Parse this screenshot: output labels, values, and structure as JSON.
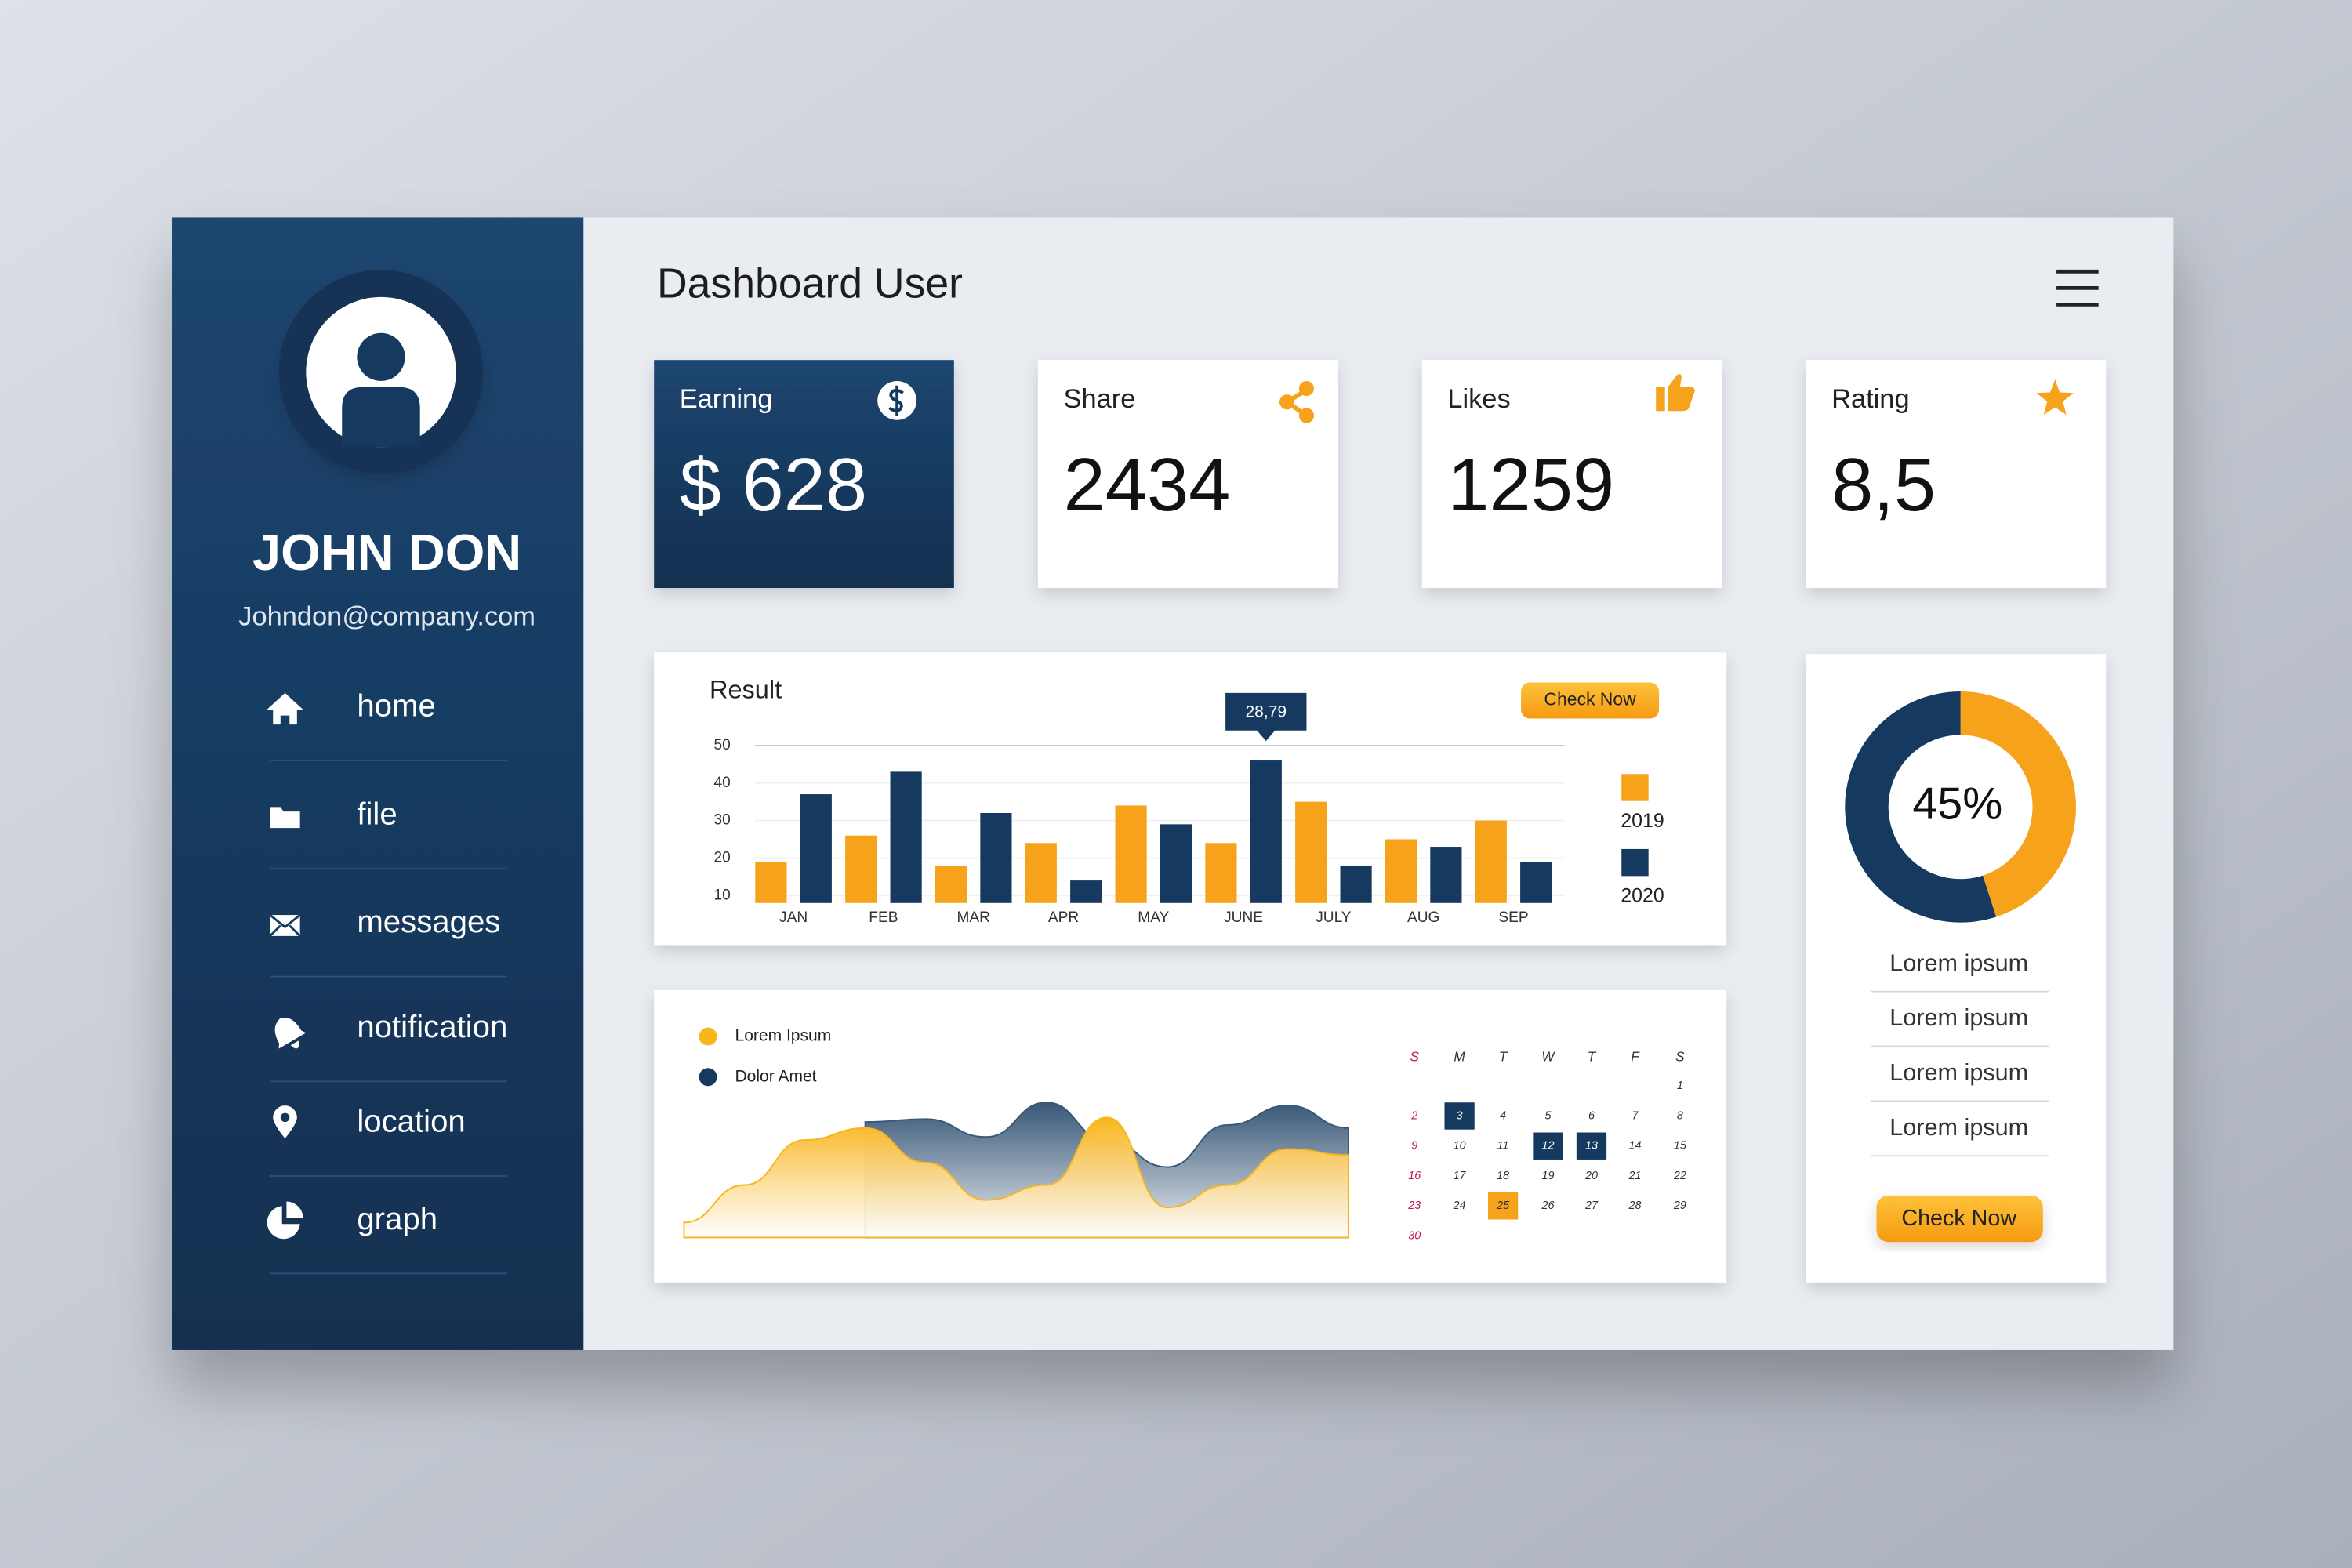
{
  "sidebar": {
    "name": "JOHN DON",
    "email": "Johndon@company.com",
    "menu": [
      "home",
      "file",
      "messages",
      "notification",
      "location",
      "graph"
    ]
  },
  "header": {
    "title": "Dashboard User"
  },
  "cards": [
    {
      "label": "Earning",
      "value": "$ 628"
    },
    {
      "label": "Share",
      "value": "2434"
    },
    {
      "label": "Likes",
      "value": "1259"
    },
    {
      "label": "Rating",
      "value": "8,5"
    }
  ],
  "chart_data": [
    {
      "type": "bar",
      "title": "Result",
      "button": "Check Now",
      "annotation": "28,79",
      "categories": [
        "JAN",
        "FEB",
        "MAR",
        "APR",
        "MAY",
        "JUNE",
        "JULY",
        "AUG",
        "SEP"
      ],
      "series": [
        {
          "name": "2019",
          "color": "#f7a21b",
          "values": [
            19,
            26,
            18,
            24,
            34,
            24,
            35,
            25,
            30
          ]
        },
        {
          "name": "2020",
          "color": "#163a5f",
          "values": [
            37,
            43,
            32,
            14,
            29,
            46,
            18,
            23,
            19
          ]
        }
      ],
      "ylim": [
        8,
        50
      ],
      "yticks": [
        10,
        20,
        30,
        40,
        50
      ],
      "grid": true
    },
    {
      "type": "pie",
      "donut": true,
      "values": [
        45,
        55
      ],
      "value_labels": [
        "45%",
        null
      ],
      "colors": [
        "#f7a21b",
        "#163a5f"
      ]
    },
    {
      "type": "area",
      "x": [
        0,
        1,
        2,
        3,
        4,
        5,
        6,
        7,
        8,
        9,
        10,
        11
      ],
      "xlim": [
        0,
        11
      ],
      "ylim": [
        0,
        100
      ],
      "series": [
        {
          "name": "Lorem Ipsum",
          "color": "#f9b51c",
          "values": [
            10,
            35,
            65,
            73,
            50,
            25,
            35,
            80,
            20,
            35,
            59,
            55
          ]
        },
        {
          "name": "Dolor Amet",
          "color": "#163a5f",
          "values": [
            null,
            null,
            null,
            77,
            79,
            67,
            90,
            65,
            47,
            75,
            88,
            73
          ]
        }
      ]
    }
  ],
  "calendar": {
    "weekdays": [
      "S",
      "M",
      "T",
      "W",
      "T",
      "F",
      "S"
    ],
    "weeks": [
      [
        null,
        null,
        null,
        null,
        null,
        null,
        "1"
      ],
      [
        "2",
        "3",
        "4",
        "5",
        "6",
        "7",
        "8"
      ],
      [
        "9",
        "10",
        "11",
        "12",
        "13",
        "14",
        "15"
      ],
      [
        "16",
        "17",
        "18",
        "19",
        "20",
        "21",
        "22"
      ],
      [
        "23",
        "24",
        "25",
        "26",
        "27",
        "28",
        "29"
      ],
      [
        "30",
        null,
        null,
        null,
        null,
        null,
        null
      ]
    ]
  },
  "summary": {
    "items": [
      "Lorem ipsum",
      "Lorem ipsum",
      "Lorem ipsum",
      "Lorem ipsum"
    ],
    "button": "Check Now"
  }
}
